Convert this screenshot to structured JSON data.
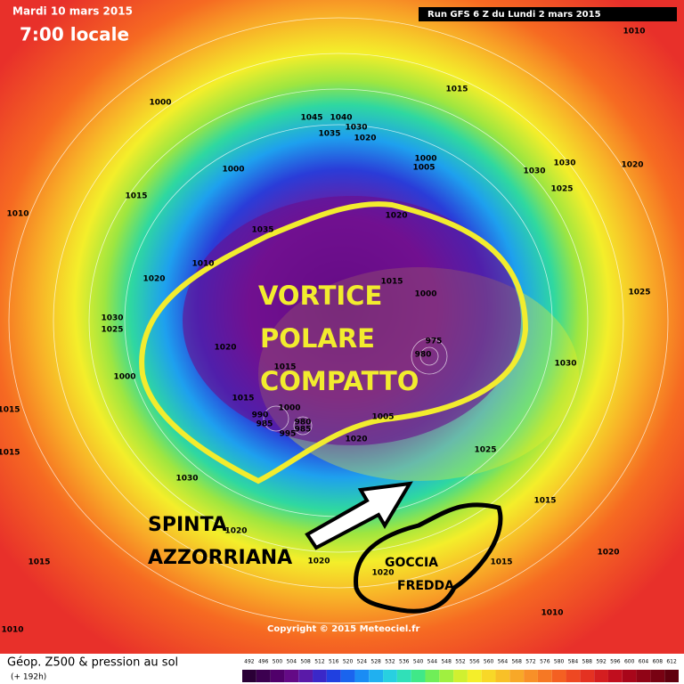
{
  "header": {
    "date": "Mardi 10 mars 2015",
    "time": "7:00 locale",
    "run": "Run GFS 6 Z du Lundi 2 mars 2015"
  },
  "annotations": {
    "vortex": [
      "VORTICE",
      "POLARE",
      "COMPATTO"
    ],
    "push": [
      "SPINTA",
      "AZZORRIANA"
    ],
    "drop": [
      "GOCCIA",
      "FREDDA"
    ]
  },
  "copyright": "Copyright © 2015 Meteociel.fr",
  "legend": {
    "title": "Géop. Z500 & pression au sol",
    "subtitle": "(+ 192h)",
    "scale": [
      "492",
      "496",
      "500",
      "504",
      "508",
      "512",
      "516",
      "520",
      "524",
      "528",
      "532",
      "536",
      "540",
      "544",
      "548",
      "552",
      "556",
      "560",
      "564",
      "568",
      "572",
      "576",
      "580",
      "584",
      "588",
      "592",
      "596",
      "600",
      "604",
      "608",
      "612"
    ]
  },
  "isobar_labels": [
    "1010",
    "1015",
    "1000",
    "1045",
    "1040",
    "1030",
    "1035",
    "1020",
    "1005",
    "1000",
    "1030",
    "1030",
    "1025",
    "1020",
    "1000",
    "1015",
    "1010",
    "1035",
    "1020",
    "1010",
    "1020",
    "1015",
    "1000",
    "1025",
    "1030",
    "1025",
    "975",
    "980",
    "1020",
    "1000",
    "1015",
    "1030",
    "1015",
    "1015",
    "1015",
    "1000",
    "990",
    "985",
    "980",
    "985",
    "995",
    "1005",
    "1020",
    "1025",
    "1030",
    "1020",
    "1015",
    "1015",
    "1020",
    "1020",
    "1015",
    "1020",
    "1010",
    "1010"
  ]
}
